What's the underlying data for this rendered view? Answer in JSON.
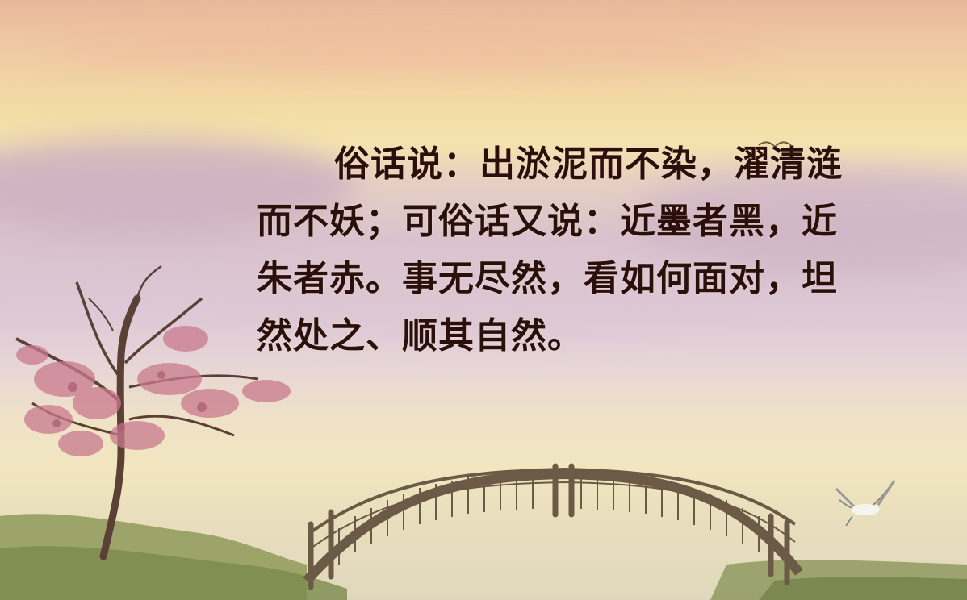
{
  "poem": {
    "text": "俗话说：出淤泥而不染，濯清涟而不妖；可俗话又说：近墨者黑，近朱者赤。事无尽然，看如何面对，坦然处之、顺其自然。"
  },
  "colors": {
    "text": "#2a0f0b",
    "sky_top": "#e9b89a",
    "sky_middle": "#d9c2cd",
    "horizon": "#f1e6bf",
    "hills": "#8f9a5c",
    "blossom": "#c97a8e",
    "tree": "#5a4035",
    "bridge": "#6b5a45"
  },
  "scene": {
    "elements": [
      "sky",
      "clouds",
      "blossom-tree",
      "arched-bridge",
      "heron",
      "grass-hills"
    ]
  }
}
